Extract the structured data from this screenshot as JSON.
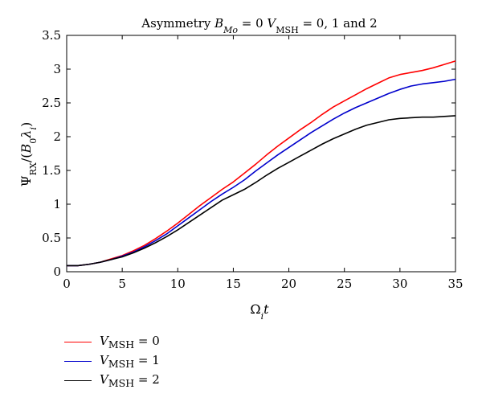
{
  "chart_data": {
    "type": "line",
    "title": "Asymmetry B_Mo = 0 V_MSH = 0, 1 and 2",
    "title_html": "Asymmetry <tspan font-style=\"italic\">B</tspan><tspan baseline-shift=\"sub\" font-size=\"11\" font-style=\"italic\">Mo</tspan> = 0 <tspan font-style=\"italic\">V</tspan><tspan baseline-shift=\"sub\" font-size=\"11\">MSH</tspan> = 0, 1 and 2",
    "xlabel": "Ω_i t",
    "ylabel": "Ψ_RX/(B_0 λ_i)",
    "xlim": [
      0,
      35
    ],
    "ylim": [
      0,
      3.5
    ],
    "xticks": [
      0,
      5,
      10,
      15,
      20,
      25,
      30,
      35
    ],
    "xtick_labels": [
      "0",
      "5",
      "10",
      "15",
      "20",
      "25",
      "30",
      "35"
    ],
    "yticks": [
      0,
      0.5,
      1,
      1.5,
      2,
      2.5,
      3,
      3.5
    ],
    "ytick_labels": [
      "0",
      "0.5",
      "1",
      "1.5",
      "2",
      "2.5",
      "3",
      "3.5"
    ],
    "grid": false,
    "legend_position": "below",
    "x": [
      0,
      1,
      2,
      3,
      4,
      5,
      6,
      7,
      8,
      9,
      10,
      11,
      12,
      13,
      14,
      15,
      16,
      17,
      18,
      19,
      20,
      21,
      22,
      23,
      24,
      25,
      26,
      27,
      28,
      29,
      30,
      31,
      32,
      33,
      34,
      35
    ],
    "series": [
      {
        "name": "V_MSH = 0",
        "color": "#ff0000",
        "values": [
          0.09,
          0.09,
          0.11,
          0.14,
          0.19,
          0.24,
          0.31,
          0.39,
          0.49,
          0.6,
          0.72,
          0.85,
          0.98,
          1.1,
          1.22,
          1.33,
          1.46,
          1.59,
          1.73,
          1.86,
          1.98,
          2.1,
          2.21,
          2.33,
          2.44,
          2.53,
          2.62,
          2.71,
          2.79,
          2.87,
          2.92,
          2.95,
          2.98,
          3.02,
          3.07,
          3.12
        ]
      },
      {
        "name": "V_MSH = 1",
        "color": "#0000cc",
        "values": [
          0.09,
          0.09,
          0.11,
          0.14,
          0.18,
          0.23,
          0.29,
          0.37,
          0.46,
          0.56,
          0.68,
          0.8,
          0.92,
          1.04,
          1.15,
          1.25,
          1.36,
          1.49,
          1.61,
          1.73,
          1.84,
          1.95,
          2.06,
          2.16,
          2.26,
          2.35,
          2.43,
          2.5,
          2.57,
          2.64,
          2.7,
          2.75,
          2.78,
          2.8,
          2.82,
          2.85
        ]
      },
      {
        "name": "V_MSH = 2",
        "color": "#000000",
        "values": [
          0.09,
          0.09,
          0.11,
          0.14,
          0.18,
          0.22,
          0.28,
          0.35,
          0.43,
          0.52,
          0.62,
          0.73,
          0.84,
          0.95,
          1.06,
          1.14,
          1.22,
          1.32,
          1.43,
          1.53,
          1.62,
          1.71,
          1.8,
          1.89,
          1.97,
          2.04,
          2.11,
          2.17,
          2.21,
          2.25,
          2.27,
          2.28,
          2.29,
          2.29,
          2.3,
          2.31
        ]
      }
    ],
    "legend_labels_html": [
      "<i>V</i><sub>MSH</sub> = 0",
      "<i>V</i><sub>MSH</sub> = 1",
      "<i>V</i><sub>MSH</sub> = 2"
    ]
  }
}
